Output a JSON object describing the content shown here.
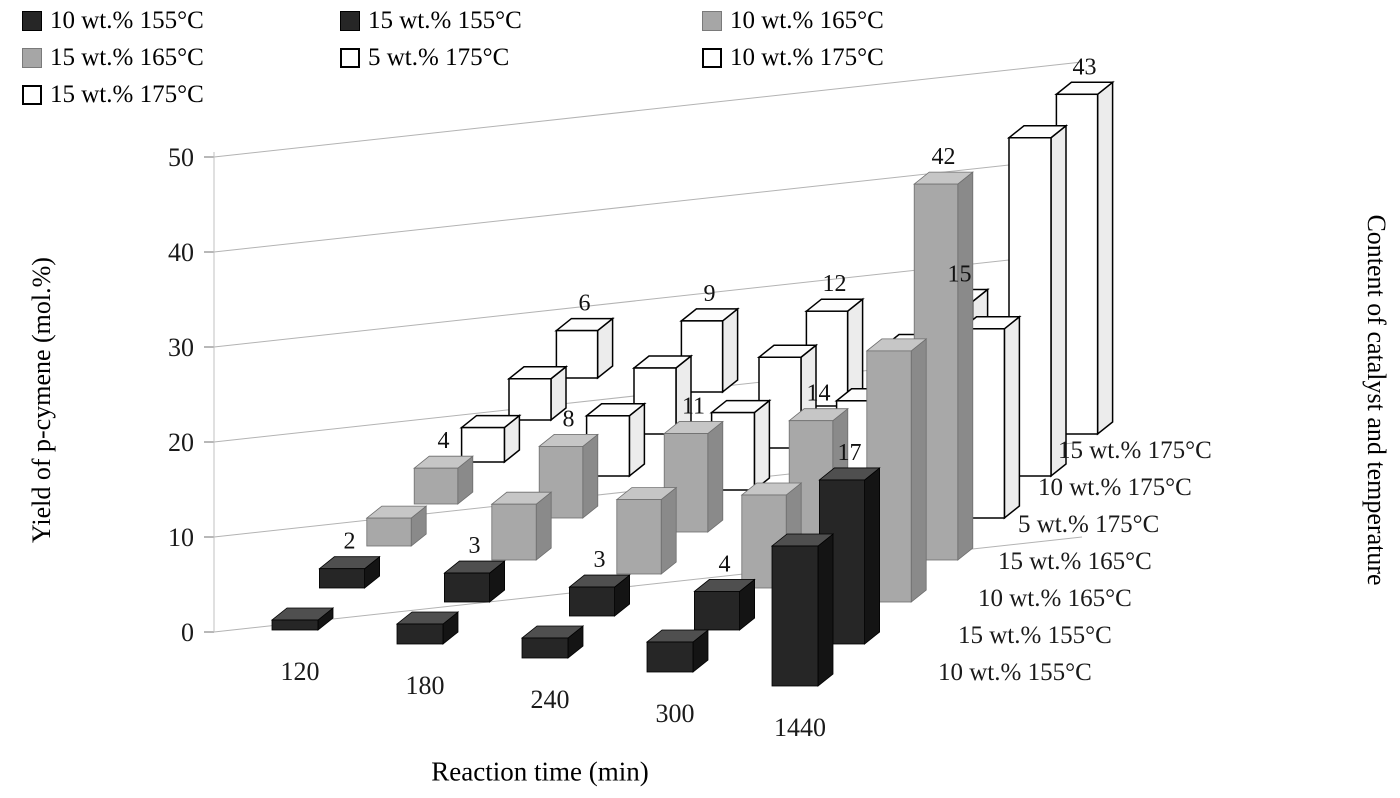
{
  "figure": {
    "y_axis_title": "Yield of p-cymene (mol.%)",
    "x_axis_title": "Reaction time (min)",
    "series_axis_title": "Content of catalyst and temperature"
  },
  "legend": {
    "items": [
      {
        "label": "10 wt.% 155°C",
        "swatch": "dark"
      },
      {
        "label": "15 wt.% 155°C",
        "swatch": "dark"
      },
      {
        "label": "10 wt.% 165°C",
        "swatch": "gray"
      },
      {
        "label": "15 wt.% 165°C",
        "swatch": "gray"
      },
      {
        "label": "5 wt.% 175°C",
        "swatch": "white"
      },
      {
        "label": "10 wt.% 175°C",
        "swatch": "white"
      },
      {
        "label": "15 wt.% 175°C",
        "swatch": "white"
      }
    ]
  },
  "chart_data": {
    "type": "bar",
    "projection": "3d-column",
    "title": "",
    "xlabel": "Reaction time (min)",
    "ylabel": "Yield of p-cymene (mol.%)",
    "series_axis_label": "Content of catalyst and temperature",
    "categories": [
      "120",
      "180",
      "240",
      "300",
      "1440"
    ],
    "yticks": [
      0,
      10,
      20,
      30,
      40,
      50
    ],
    "ylim": [
      0,
      50
    ],
    "grid": true,
    "legend_position": "top-left",
    "colors": {
      "dark": "#262626",
      "gray": "#a6a6a6",
      "white": "#ffffff"
    },
    "series": [
      {
        "name": "10 wt.% 155°C",
        "style": "dark",
        "values": [
          1,
          2,
          2,
          3,
          14
        ],
        "labels_visible": false
      },
      {
        "name": "15 wt.% 155°C",
        "style": "dark",
        "values": [
          2,
          3,
          3,
          4,
          17
        ],
        "labels_visible": true
      },
      {
        "name": "10 wt.% 165°C",
        "style": "gray",
        "values": [
          3,
          6,
          8,
          10,
          27
        ],
        "labels_visible": false
      },
      {
        "name": "15 wt.% 165°C",
        "style": "gray",
        "values": [
          4,
          8,
          11,
          14,
          42
        ],
        "labels_visible": true
      },
      {
        "name": "5 wt.% 175°C",
        "style": "white",
        "values": [
          4,
          7,
          9,
          12,
          22
        ],
        "labels_visible": false
      },
      {
        "name": "10 wt.% 175°C",
        "style": "white",
        "values": [
          5,
          8,
          11,
          14,
          41
        ],
        "labels_visible": false
      },
      {
        "name": "15 wt.% 175°C",
        "style": "white",
        "values": [
          6,
          9,
          12,
          15,
          43
        ],
        "labels_visible": true
      }
    ]
  }
}
